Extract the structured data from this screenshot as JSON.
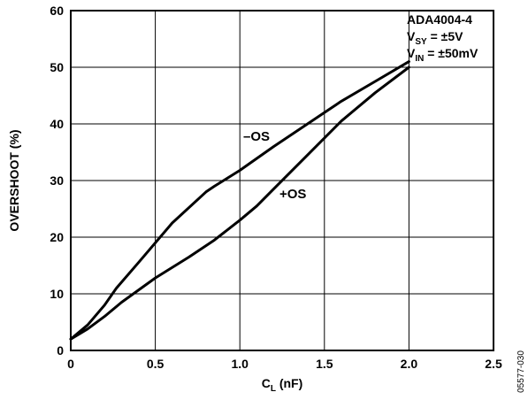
{
  "chart_data": {
    "type": "line",
    "xlabel": "C",
    "xlabel_sub": "L",
    "xlabel_unit": " (nF)",
    "ylabel": "OVERSHOOT (%)",
    "xlim": [
      0,
      2.5
    ],
    "ylim": [
      0,
      60
    ],
    "xticks": [
      0,
      0.5,
      1.0,
      1.5,
      2.0,
      2.5
    ],
    "xtick_labels": [
      "0",
      "0.5",
      "1.0",
      "1.5",
      "2.0",
      "2.5"
    ],
    "yticks": [
      0,
      10,
      20,
      30,
      40,
      50,
      60
    ],
    "ytick_labels": [
      "0",
      "10",
      "20",
      "30",
      "40",
      "50",
      "60"
    ],
    "grid": true,
    "series": [
      {
        "name": "–OS",
        "x": [
          0,
          0.1,
          0.2,
          0.27,
          0.4,
          0.6,
          0.8,
          0.85,
          1.0,
          1.2,
          1.4,
          1.6,
          1.8,
          2.0
        ],
        "y": [
          2,
          4.5,
          8,
          11,
          15.5,
          22.5,
          28,
          29,
          31.8,
          36,
          40,
          44,
          47.5,
          51
        ]
      },
      {
        "name": "+OS",
        "x": [
          0,
          0.1,
          0.2,
          0.3,
          0.5,
          0.7,
          0.85,
          1.0,
          1.1,
          1.2,
          1.4,
          1.6,
          1.8,
          2.0
        ],
        "y": [
          2,
          3.8,
          6,
          8.5,
          12.8,
          16.5,
          19.5,
          23,
          25.5,
          28.5,
          34.5,
          40.5,
          45.5,
          50
        ]
      }
    ],
    "annotation": {
      "device": "ADA4004-4",
      "vsy_main": "V",
      "vsy_sub": "SY",
      "vsy_rest": " = ±5V",
      "vin_main": "V",
      "vin_sub": "IN",
      "vin_rest": " = ±50mV"
    },
    "figure_id": "05577-030"
  }
}
